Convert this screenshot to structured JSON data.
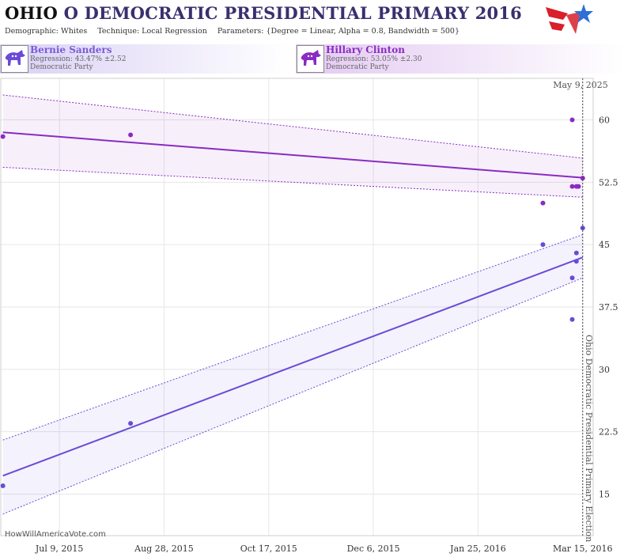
{
  "header": {
    "state": "OHIO",
    "title_rest": " O DEMOCRATIC PRESIDENTIAL PRIMARY 2016",
    "demographic_label": "Demographic: Whites",
    "technique_label": "Technique: Local Regression",
    "parameters_label": "Parameters: {Degree = Linear, Alpha = 0.8, Bandwidth = 500}",
    "logo_icon": "star-flag-logo-icon"
  },
  "candidates": [
    {
      "name": "Bernie Sanders",
      "regression": "Regression: 43.47% ±2.52",
      "party": "Democratic Party",
      "color": "#7b5bd6",
      "icon": "donkey-icon"
    },
    {
      "name": "Hillary Clinton",
      "regression": "Regression: 53.05% ±2.30",
      "party": "Democratic Party",
      "color": "#8a2bc2",
      "icon": "donkey-icon"
    }
  ],
  "annotations": {
    "date_marker": "May 9, 2025",
    "election_label": "Ohio Democratic Presidential Primary Election",
    "watermark": "HowWillAmericaVote.com"
  },
  "chart_data": {
    "type": "scatter",
    "y_ticks": [
      15,
      22.5,
      30,
      37.5,
      45,
      52.5,
      60
    ],
    "y_tick_labels": [
      "15",
      "22.5",
      "30",
      "37.5",
      "45",
      "52.5",
      "60"
    ],
    "ylim": [
      10,
      65
    ],
    "x_ticks": [
      "2015-07-09",
      "2015-08-28",
      "2015-10-17",
      "2015-12-06",
      "2016-01-25",
      "2016-03-15"
    ],
    "x_tick_labels": [
      "Jul 9, 2015",
      "Aug 28, 2015",
      "Oct 17, 2015",
      "Dec 6, 2015",
      "Jan 25, 2016",
      "Mar 15, 2016"
    ],
    "xlim": [
      "2015-06-11",
      "2016-03-20"
    ],
    "election_date": "2016-03-15",
    "grid": true,
    "series": [
      {
        "name": "Hillary Clinton",
        "color": "#8a2bc2",
        "points": [
          [
            "2015-06-12",
            58
          ],
          [
            "2015-08-12",
            58.2
          ],
          [
            "2016-02-25",
            50
          ],
          [
            "2016-03-10",
            60
          ],
          [
            "2016-03-10",
            52
          ],
          [
            "2016-03-12",
            52
          ],
          [
            "2016-03-13",
            52
          ],
          [
            "2016-03-15",
            53
          ]
        ],
        "trend": [
          [
            "2015-06-12",
            58.5
          ],
          [
            "2016-03-15",
            53.05
          ]
        ],
        "band_upper": [
          [
            "2015-06-12",
            63
          ],
          [
            "2016-03-15",
            55.4
          ]
        ],
        "band_lower": [
          [
            "2015-06-12",
            54.3
          ],
          [
            "2016-03-15",
            50.7
          ]
        ]
      },
      {
        "name": "Bernie Sanders",
        "color": "#6a4bd6",
        "points": [
          [
            "2015-06-12",
            16
          ],
          [
            "2015-08-12",
            23.5
          ],
          [
            "2016-02-25",
            45
          ],
          [
            "2016-03-10",
            41
          ],
          [
            "2016-03-10",
            36
          ],
          [
            "2016-03-12",
            43
          ],
          [
            "2016-03-12",
            44
          ],
          [
            "2016-03-15",
            47
          ]
        ],
        "trend": [
          [
            "2015-06-12",
            17.2
          ],
          [
            "2016-03-15",
            43.47
          ]
        ],
        "band_upper": [
          [
            "2015-06-12",
            21.5
          ],
          [
            "2016-03-15",
            46.2
          ]
        ],
        "band_lower": [
          [
            "2015-06-12",
            12.6
          ],
          [
            "2016-03-15",
            41
          ]
        ]
      }
    ]
  }
}
